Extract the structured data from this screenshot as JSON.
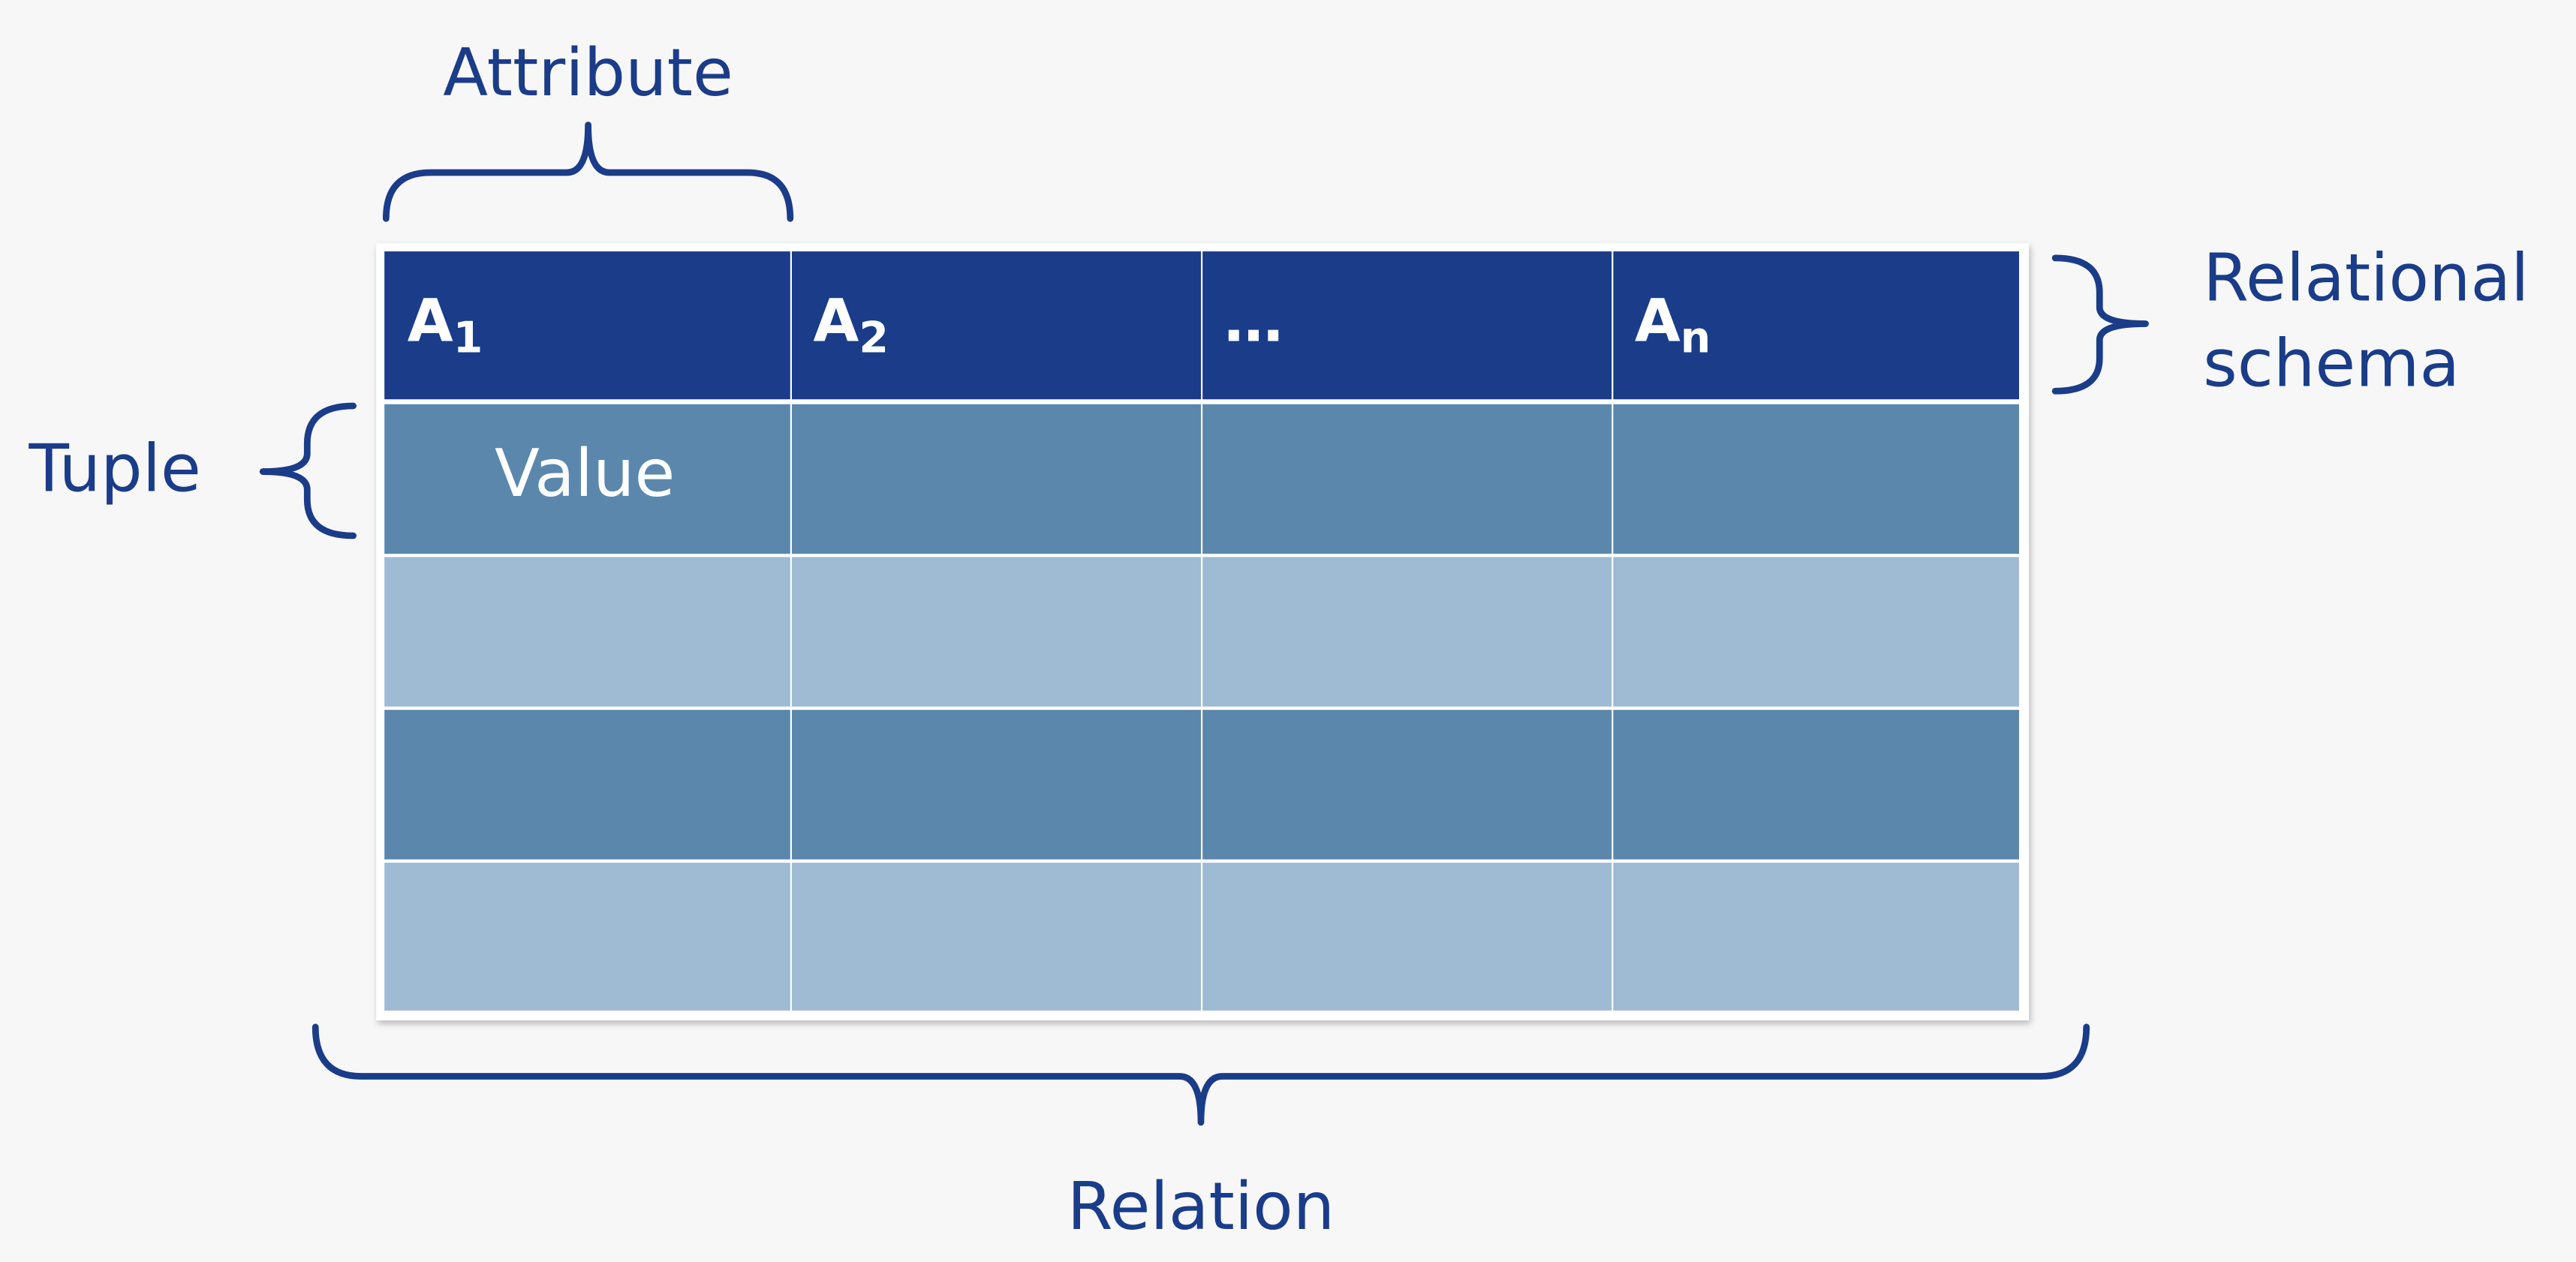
{
  "labels": {
    "attribute": "Attribute",
    "relational_schema": [
      "Relational",
      "schema"
    ],
    "tuple": "Tuple",
    "relation": "Relation"
  },
  "table": {
    "headers": [
      {
        "name": "A",
        "sub": "1"
      },
      {
        "name": "A",
        "sub": "2"
      },
      {
        "name": "…"
      },
      {
        "name": "A",
        "sub": "n"
      }
    ],
    "value": "Value"
  }
}
